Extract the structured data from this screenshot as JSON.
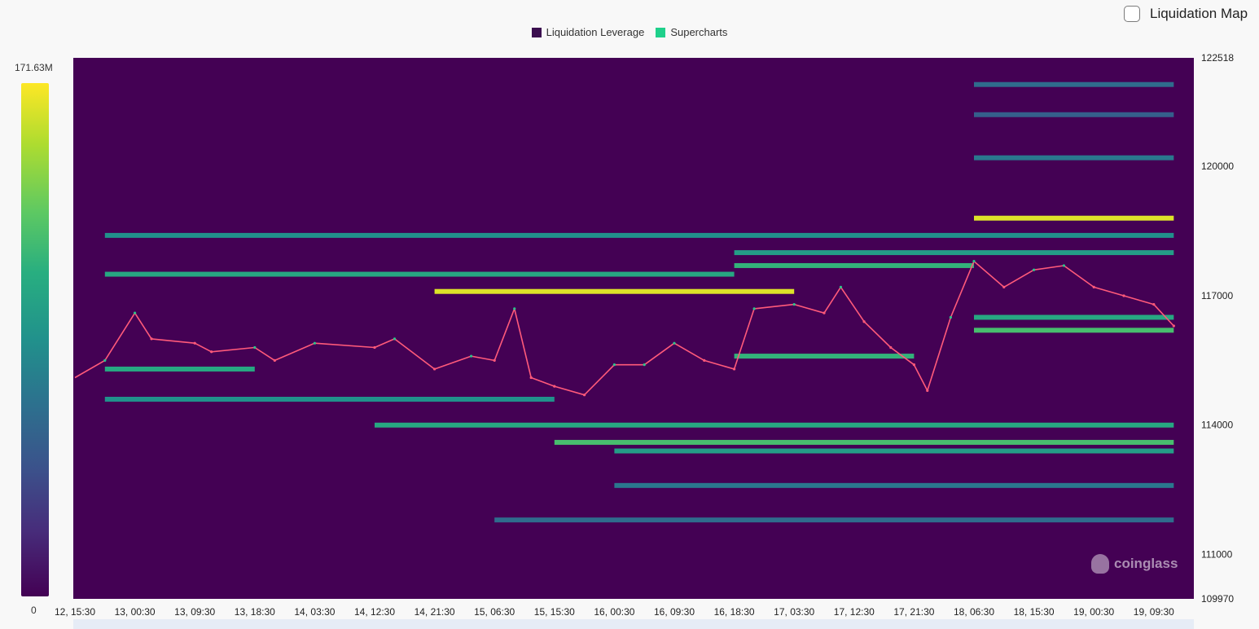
{
  "toggle": {
    "label": "Liquidation Map",
    "checked": false
  },
  "legend": [
    {
      "label": "Liquidation Leverage",
      "color": "#3b0f4f"
    },
    {
      "label": "Supercharts",
      "color": "#1fd08b"
    }
  ],
  "colorbar": {
    "max_label": "171.63M",
    "min_label": "0",
    "colormap": "viridis"
  },
  "watermark": {
    "text": "coinglass",
    "icon": "coinglass-logo-icon"
  },
  "chart_data": {
    "type": "heatmap",
    "title": "",
    "xlabel": "",
    "ylabel": "",
    "ylim": [
      109970,
      122518
    ],
    "y_ticks": [
      "122518",
      "120000",
      "117000",
      "114000",
      "111000",
      "109970"
    ],
    "x_ticks": [
      "12, 15:30",
      "13, 00:30",
      "13, 09:30",
      "13, 18:30",
      "14, 03:30",
      "14, 12:30",
      "14, 21:30",
      "15, 06:30",
      "15, 15:30",
      "16, 00:30",
      "16, 09:30",
      "16, 18:30",
      "17, 03:30",
      "17, 12:30",
      "17, 21:30",
      "18, 06:30",
      "18, 15:30",
      "19, 00:30",
      "19, 09:30"
    ],
    "price_line": [
      [
        "12, 15:30",
        115100
      ],
      [
        "12, 20:00",
        115500
      ],
      [
        "13, 00:30",
        116600
      ],
      [
        "13, 03:00",
        116000
      ],
      [
        "13, 09:30",
        115900
      ],
      [
        "13, 12:00",
        115700
      ],
      [
        "13, 18:30",
        115800
      ],
      [
        "13, 21:30",
        115500
      ],
      [
        "14, 03:30",
        115900
      ],
      [
        "14, 12:30",
        115800
      ],
      [
        "14, 15:30",
        116000
      ],
      [
        "14, 21:30",
        115300
      ],
      [
        "15, 03:00",
        115600
      ],
      [
        "15, 06:30",
        115500
      ],
      [
        "15, 09:30",
        116700
      ],
      [
        "15, 12:00",
        115100
      ],
      [
        "15, 15:30",
        114900
      ],
      [
        "15, 20:00",
        114700
      ],
      [
        "16, 00:30",
        115400
      ],
      [
        "16, 05:00",
        115400
      ],
      [
        "16, 09:30",
        115900
      ],
      [
        "16, 14:00",
        115500
      ],
      [
        "16, 18:30",
        115300
      ],
      [
        "16, 21:30",
        116700
      ],
      [
        "17, 03:30",
        116800
      ],
      [
        "17, 08:00",
        116600
      ],
      [
        "17, 10:30",
        117200
      ],
      [
        "17, 14:00",
        116400
      ],
      [
        "17, 18:00",
        115800
      ],
      [
        "17, 21:30",
        115400
      ],
      [
        "17, 23:30",
        114800
      ],
      [
        "18, 03:00",
        116500
      ],
      [
        "18, 06:30",
        117800
      ],
      [
        "18, 11:00",
        117200
      ],
      [
        "18, 15:30",
        117600
      ],
      [
        "18, 20:00",
        117700
      ],
      [
        "19, 00:30",
        117200
      ],
      [
        "19, 05:00",
        117000
      ],
      [
        "19, 09:30",
        116800
      ],
      [
        "19, 12:30",
        116300
      ]
    ],
    "liquidation_bands": [
      {
        "price": 121900,
        "from": "18, 06:30",
        "to": "19, 12:30",
        "intensity": 0.35
      },
      {
        "price": 121200,
        "from": "18, 06:30",
        "to": "19, 12:30",
        "intensity": 0.3
      },
      {
        "price": 120200,
        "from": "18, 06:30",
        "to": "19, 12:30",
        "intensity": 0.4
      },
      {
        "price": 118800,
        "from": "18, 06:30",
        "to": "19, 12:30",
        "intensity": 0.95
      },
      {
        "price": 118400,
        "from": "12, 20:00",
        "to": "19, 12:30",
        "intensity": 0.5
      },
      {
        "price": 118000,
        "from": "16, 18:30",
        "to": "19, 12:30",
        "intensity": 0.55
      },
      {
        "price": 117700,
        "from": "16, 18:30",
        "to": "18, 06:30",
        "intensity": 0.65
      },
      {
        "price": 117500,
        "from": "12, 20:00",
        "to": "16, 18:30",
        "intensity": 0.6
      },
      {
        "price": 117100,
        "from": "14, 21:30",
        "to": "17, 03:30",
        "intensity": 0.95
      },
      {
        "price": 116500,
        "from": "18, 06:30",
        "to": "19, 12:30",
        "intensity": 0.6
      },
      {
        "price": 116200,
        "from": "18, 06:30",
        "to": "19, 12:30",
        "intensity": 0.7
      },
      {
        "price": 115600,
        "from": "16, 18:30",
        "to": "17, 21:30",
        "intensity": 0.65
      },
      {
        "price": 115300,
        "from": "12, 20:00",
        "to": "13, 18:30",
        "intensity": 0.6
      },
      {
        "price": 114600,
        "from": "12, 20:00",
        "to": "15, 15:30",
        "intensity": 0.5
      },
      {
        "price": 114000,
        "from": "14, 12:30",
        "to": "19, 12:30",
        "intensity": 0.6
      },
      {
        "price": 113600,
        "from": "15, 15:30",
        "to": "19, 12:30",
        "intensity": 0.7
      },
      {
        "price": 113400,
        "from": "16, 00:30",
        "to": "19, 12:30",
        "intensity": 0.55
      },
      {
        "price": 112600,
        "from": "16, 00:30",
        "to": "19, 12:30",
        "intensity": 0.4
      },
      {
        "price": 111800,
        "from": "15, 06:30",
        "to": "19, 12:30",
        "intensity": 0.35
      }
    ]
  }
}
